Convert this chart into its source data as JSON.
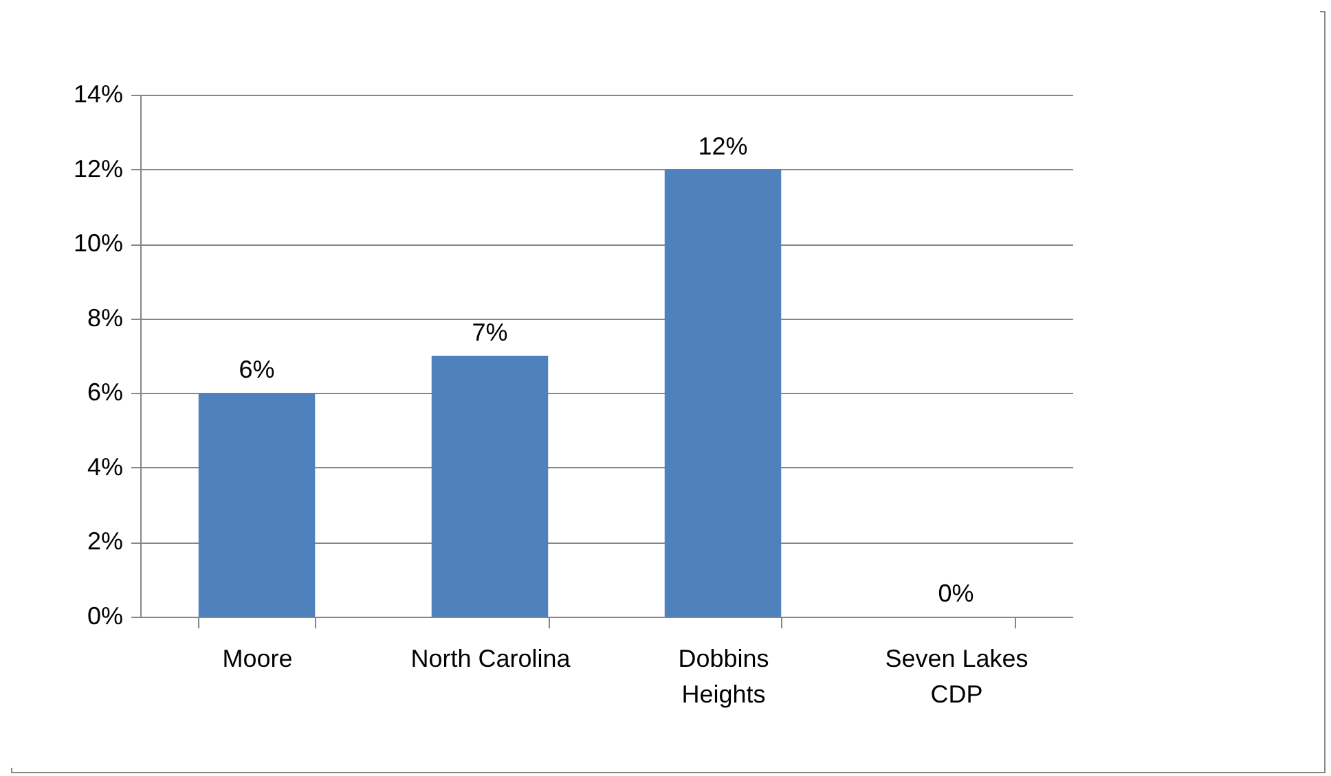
{
  "chart_data": {
    "type": "bar",
    "categories": [
      "Moore",
      "North Carolina",
      "Dobbins Heights",
      "Seven Lakes CDP"
    ],
    "values": [
      6,
      7,
      12,
      0
    ],
    "value_labels": [
      "6%",
      "7%",
      "12%",
      "0%"
    ],
    "color": "#4f81bd",
    "ylim": [
      0,
      14
    ],
    "yticks": [
      {
        "value": 0,
        "label": "0%"
      },
      {
        "value": 2,
        "label": "2%"
      },
      {
        "value": 4,
        "label": "4%"
      },
      {
        "value": 6,
        "label": "6%"
      },
      {
        "value": 8,
        "label": "8%"
      },
      {
        "value": 10,
        "label": "10%"
      },
      {
        "value": 12,
        "label": "12%"
      },
      {
        "value": 14,
        "label": "14%"
      }
    ],
    "grid": "y"
  }
}
